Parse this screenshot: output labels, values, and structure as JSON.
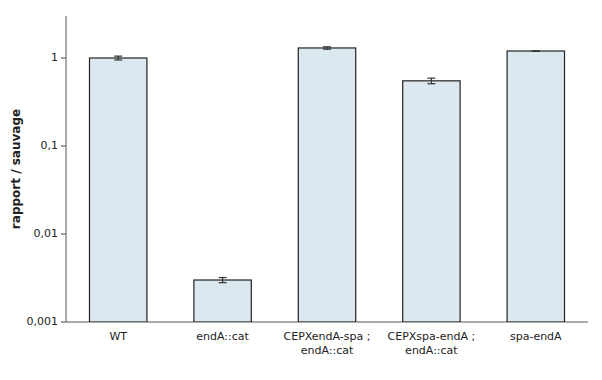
{
  "chart_data": {
    "type": "bar",
    "ylabel": "rapport / sauvage",
    "categories": [
      "WT",
      "endA::cat",
      "CEPXendA-spa ;\nendA::cat",
      "CEPXspa-endA ;\nendA::cat",
      "spa-endA"
    ],
    "values": [
      1.0,
      0.003,
      1.3,
      0.55,
      1.2
    ],
    "errors": [
      0.05,
      0.0002,
      0.04,
      0.04,
      0.0
    ],
    "color": "#dce8f0",
    "log": "y",
    "ylim": [
      0.001,
      3.0
    ],
    "yticks": [
      {
        "value": 0.001,
        "label": "0,001"
      },
      {
        "value": 0.01,
        "label": "0,01"
      },
      {
        "value": 0.1,
        "label": "0,1"
      },
      1
    ],
    "grid": false
  }
}
